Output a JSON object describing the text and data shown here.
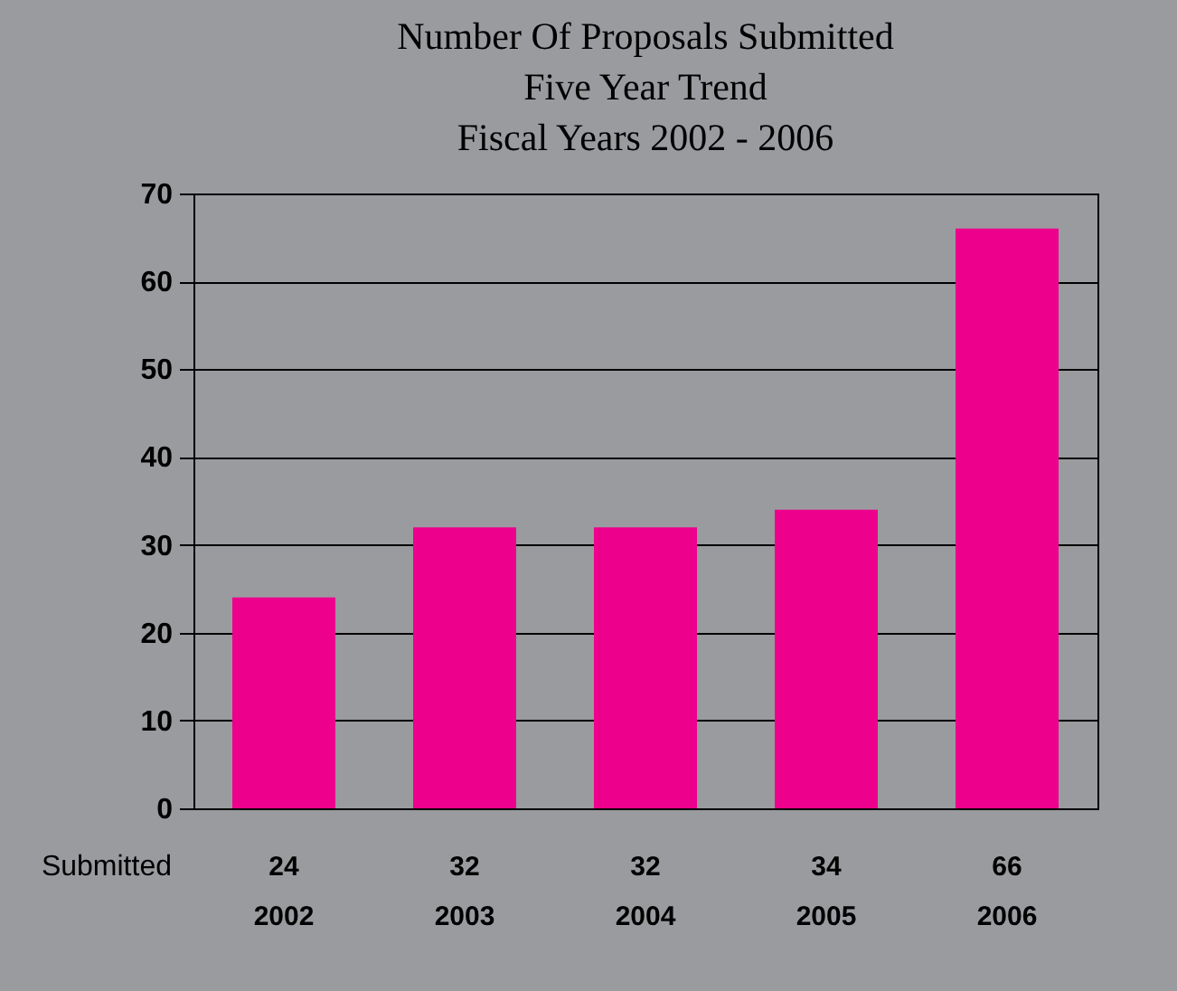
{
  "chart_data": {
    "type": "bar",
    "title": "Number Of Proposals Submitted\nFive Year Trend\nFiscal Years 2002 - 2006",
    "categories": [
      "2002",
      "2003",
      "2004",
      "2005",
      "2006"
    ],
    "series": [
      {
        "name": "Submitted",
        "color": "#ec008c",
        "values": [
          24,
          32,
          32,
          34,
          66
        ]
      }
    ],
    "ylim": [
      0,
      70
    ],
    "yticks": [
      0,
      10,
      20,
      30,
      40,
      50,
      60,
      70
    ],
    "grid": "y",
    "data_labels": true,
    "legend": false
  }
}
